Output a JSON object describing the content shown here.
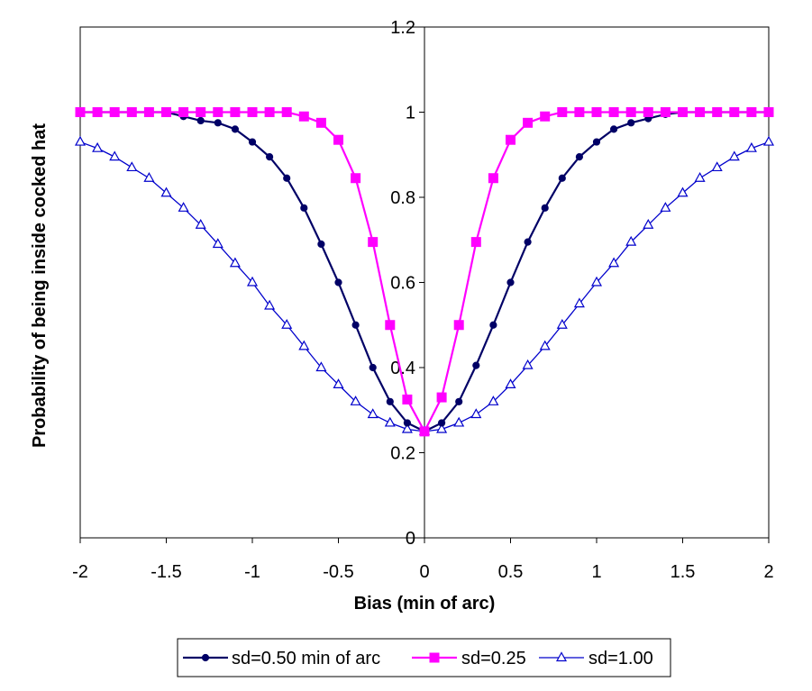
{
  "chart_data": {
    "type": "line",
    "title": "",
    "xlabel": "Bias (min of arc)",
    "ylabel": "Probability of being inside cocked hat",
    "xlim": [
      -2,
      2
    ],
    "ylim": [
      0,
      1.2
    ],
    "x_ticks": [
      "-2",
      "-1.5",
      "-1",
      "-0.5",
      "0",
      "0.5",
      "1",
      "1.5",
      "2"
    ],
    "x_tick_values": [
      -2,
      -1.5,
      -1,
      -0.5,
      0,
      0.5,
      1,
      1.5,
      2
    ],
    "y_ticks": [
      "0",
      "0.2",
      "0.4",
      "0.6",
      "0.8",
      "1",
      "1.2"
    ],
    "y_tick_values": [
      0,
      0.2,
      0.4,
      0.6,
      0.8,
      1.0,
      1.2
    ],
    "grid": false,
    "legend_position": "bottom",
    "x": [
      -2,
      -1.9,
      -1.8,
      -1.7,
      -1.6,
      -1.5,
      -1.4,
      -1.3,
      -1.2,
      -1.1,
      -1,
      -0.9,
      -0.8,
      -0.7,
      -0.6,
      -0.5,
      -0.4,
      -0.3,
      -0.2,
      -0.1,
      0,
      0.1,
      0.2,
      0.3,
      0.4,
      0.5,
      0.6,
      0.7,
      0.8,
      0.9,
      1,
      1.1,
      1.2,
      1.3,
      1.4,
      1.5,
      1.6,
      1.7,
      1.8,
      1.9,
      2
    ],
    "series": [
      {
        "name": "sd=0.50 min of arc",
        "color": "#000066",
        "marker": "circle",
        "values": [
          1.0,
          1.0,
          1.0,
          1.0,
          1.0,
          1.0,
          0.99,
          0.98,
          0.975,
          0.96,
          0.93,
          0.895,
          0.845,
          0.775,
          0.69,
          0.6,
          0.5,
          0.4,
          0.32,
          0.27,
          0.25,
          0.27,
          0.32,
          0.405,
          0.5,
          0.6,
          0.695,
          0.775,
          0.845,
          0.895,
          0.93,
          0.96,
          0.975,
          0.985,
          0.995,
          1.0,
          1.0,
          1.0,
          1.0,
          1.0,
          1.0
        ]
      },
      {
        "name": "sd=0.25",
        "color": "#ff00ff",
        "marker": "square",
        "values": [
          1.0,
          1.0,
          1.0,
          1.0,
          1.0,
          1.0,
          1.0,
          1.0,
          1.0,
          1.0,
          1.0,
          1.0,
          1.0,
          0.99,
          0.975,
          0.935,
          0.845,
          0.695,
          0.5,
          0.325,
          0.25,
          0.33,
          0.5,
          0.695,
          0.845,
          0.935,
          0.975,
          0.99,
          1.0,
          1.0,
          1.0,
          1.0,
          1.0,
          1.0,
          1.0,
          1.0,
          1.0,
          1.0,
          1.0,
          1.0,
          1.0
        ]
      },
      {
        "name": "sd=1.00",
        "color": "#0000cc",
        "marker": "triangle",
        "values": [
          0.93,
          0.915,
          0.895,
          0.87,
          0.845,
          0.81,
          0.775,
          0.735,
          0.69,
          0.645,
          0.6,
          0.545,
          0.5,
          0.45,
          0.4,
          0.36,
          0.32,
          0.29,
          0.27,
          0.255,
          0.25,
          0.255,
          0.27,
          0.29,
          0.32,
          0.36,
          0.405,
          0.45,
          0.5,
          0.55,
          0.6,
          0.645,
          0.695,
          0.735,
          0.775,
          0.81,
          0.845,
          0.87,
          0.895,
          0.915,
          0.93
        ]
      }
    ]
  }
}
